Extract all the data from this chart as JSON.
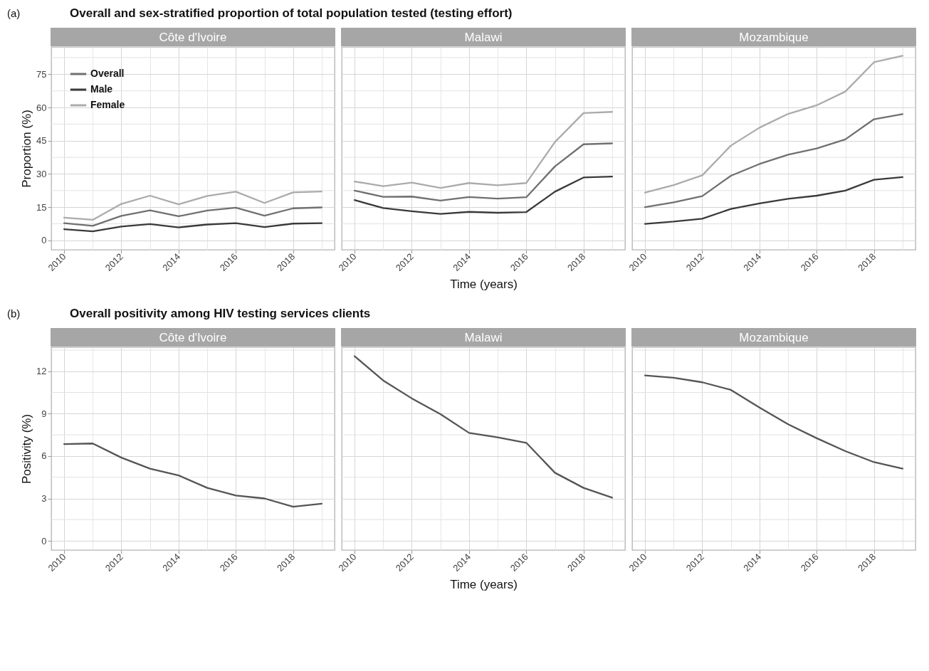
{
  "chart_data": [
    {
      "type": "line",
      "title": "Côte d'Ivoire",
      "annotations": [
        "(a)",
        "Overall and sex-stratified proportion of total population tested (testing effort)"
      ],
      "ylabel": "Proportion (%)",
      "x": [
        2010,
        2011,
        2012,
        2013,
        2014,
        2015,
        2016,
        2017,
        2018,
        2019
      ],
      "xlim": [
        2009.55,
        2019.45
      ],
      "xticks": [
        2010,
        {
          "value": 2011,
          "label": null
        },
        2012,
        {
          "value": 2013,
          "label": null
        },
        2014,
        {
          "value": 2015,
          "label": null
        },
        2016,
        {
          "value": 2017,
          "label": null
        },
        2018,
        {
          "value": 2019,
          "label": null
        }
      ],
      "ylim": [
        -4.2,
        87.3
      ],
      "yticks": [
        0,
        {
          "value": 7.5,
          "label": null
        },
        15,
        {
          "value": 22.5,
          "label": null
        },
        30,
        {
          "value": 37.5,
          "label": null
        },
        45,
        {
          "value": 52.5,
          "label": null
        },
        60,
        {
          "value": 67.5,
          "label": null
        },
        75,
        {
          "value": 82.5,
          "label": null
        }
      ],
      "grid": true,
      "legend": "top left",
      "series": [
        {
          "name": "Overall",
          "color": "#707070",
          "values": [
            7.8,
            6.6,
            11.1,
            13.6,
            10.9,
            13.5,
            14.8,
            11.2,
            14.5,
            14.9
          ]
        },
        {
          "name": "Male",
          "color": "#3a3a3a",
          "values": [
            5.1,
            4.1,
            6.3,
            7.4,
            5.9,
            7.2,
            7.8,
            6.0,
            7.6,
            7.8
          ]
        },
        {
          "name": "Female",
          "color": "#ababab",
          "values": [
            10.3,
            9.3,
            16.5,
            20.2,
            16.3,
            20.1,
            22.0,
            16.9,
            21.7,
            22.1
          ]
        }
      ]
    },
    {
      "type": "line",
      "title": "Malawi",
      "xlabel": "Time (years)",
      "tick_labels": "x",
      "x": [
        2010,
        2011,
        2012,
        2013,
        2014,
        2015,
        2016,
        2017,
        2018,
        2019
      ],
      "xlim": [
        2009.55,
        2019.45
      ],
      "xticks": [
        2010,
        {
          "value": 2011,
          "label": null
        },
        2012,
        {
          "value": 2013,
          "label": null
        },
        2014,
        {
          "value": 2015,
          "label": null
        },
        2016,
        {
          "value": 2017,
          "label": null
        },
        2018,
        {
          "value": 2019,
          "label": null
        }
      ],
      "ylim": [
        -4.2,
        87.3
      ],
      "yticks": [
        0,
        {
          "value": 7.5,
          "label": null
        },
        15,
        {
          "value": 22.5,
          "label": null
        },
        30,
        {
          "value": 37.5,
          "label": null
        },
        45,
        {
          "value": 52.5,
          "label": null
        },
        60,
        {
          "value": 67.5,
          "label": null
        },
        75,
        {
          "value": 82.5,
          "label": null
        }
      ],
      "grid": true,
      "series": [
        {
          "color": "#707070",
          "values": [
            22.5,
            19.7,
            19.8,
            18.0,
            19.6,
            18.9,
            19.5,
            33.4,
            43.4,
            43.8
          ]
        },
        {
          "color": "#3a3a3a",
          "values": [
            18.2,
            14.6,
            13.2,
            12.0,
            12.9,
            12.5,
            12.8,
            22.0,
            28.4,
            28.8
          ]
        },
        {
          "color": "#ababab",
          "values": [
            26.6,
            24.5,
            26.1,
            23.7,
            25.9,
            24.9,
            25.9,
            44.4,
            57.5,
            58.0
          ]
        }
      ]
    },
    {
      "type": "line",
      "title": "Mozambique",
      "tick_labels": "x",
      "x": [
        2010,
        2011,
        2012,
        2013,
        2014,
        2015,
        2016,
        2017,
        2018,
        2019
      ],
      "xlim": [
        2009.55,
        2019.45
      ],
      "xticks": [
        2010,
        {
          "value": 2011,
          "label": null
        },
        2012,
        {
          "value": 2013,
          "label": null
        },
        2014,
        {
          "value": 2015,
          "label": null
        },
        2016,
        {
          "value": 2017,
          "label": null
        },
        2018,
        {
          "value": 2019,
          "label": null
        }
      ],
      "ylim": [
        -4.2,
        87.3
      ],
      "yticks": [
        0,
        {
          "value": 7.5,
          "label": null
        },
        15,
        {
          "value": 22.5,
          "label": null
        },
        30,
        {
          "value": 37.5,
          "label": null
        },
        45,
        {
          "value": 52.5,
          "label": null
        },
        60,
        {
          "value": 67.5,
          "label": null
        },
        75,
        {
          "value": 82.5,
          "label": null
        }
      ],
      "grid": true,
      "series": [
        {
          "color": "#707070",
          "values": [
            15.0,
            17.2,
            20.0,
            29.2,
            34.5,
            38.7,
            41.5,
            45.6,
            54.7,
            57.0
          ]
        },
        {
          "color": "#3a3a3a",
          "values": [
            7.5,
            8.5,
            9.8,
            14.2,
            16.7,
            18.8,
            20.2,
            22.5,
            27.4,
            28.6
          ]
        },
        {
          "color": "#ababab",
          "values": [
            21.6,
            25.0,
            29.4,
            42.8,
            50.9,
            57.1,
            61.0,
            67.2,
            80.4,
            83.3
          ]
        }
      ]
    },
    {
      "type": "line",
      "title": "Côte d'Ivoire",
      "annotations": [
        "(b)",
        "Overall positivity among HIV testing services clients"
      ],
      "ylabel": "Positivity (%)",
      "x": [
        2010,
        2011,
        2012,
        2013,
        2014,
        2015,
        2016,
        2017,
        2018,
        2019
      ],
      "xlim": [
        2009.55,
        2019.45
      ],
      "xticks": [
        2010,
        {
          "value": 2011,
          "label": null
        },
        2012,
        {
          "value": 2013,
          "label": null
        },
        2014,
        {
          "value": 2015,
          "label": null
        },
        2016,
        {
          "value": 2017,
          "label": null
        },
        2018,
        {
          "value": 2019,
          "label": null
        }
      ],
      "ylim": [
        -0.65,
        13.7
      ],
      "yticks": [
        0,
        {
          "value": 1.5,
          "label": null
        },
        3,
        {
          "value": 4.5,
          "label": null
        },
        6,
        {
          "value": 7.5,
          "label": null
        },
        9,
        {
          "value": 10.5,
          "label": null
        },
        12,
        {
          "value": 13.5,
          "label": null
        }
      ],
      "grid": true,
      "series": [
        {
          "color": "#555555",
          "values": [
            6.85,
            6.89,
            5.89,
            5.11,
            4.63,
            3.75,
            3.21,
            3.0,
            2.41,
            2.63
          ]
        }
      ]
    },
    {
      "type": "line",
      "title": "Malawi",
      "xlabel": "Time (years)",
      "tick_labels": "x",
      "x": [
        2010,
        2011,
        2012,
        2013,
        2014,
        2015,
        2016,
        2017,
        2018,
        2019
      ],
      "xlim": [
        2009.55,
        2019.45
      ],
      "xticks": [
        2010,
        {
          "value": 2011,
          "label": null
        },
        2012,
        {
          "value": 2013,
          "label": null
        },
        2014,
        {
          "value": 2015,
          "label": null
        },
        2016,
        {
          "value": 2017,
          "label": null
        },
        2018,
        {
          "value": 2019,
          "label": null
        }
      ],
      "ylim": [
        -0.65,
        13.7
      ],
      "yticks": [
        0,
        {
          "value": 1.5,
          "label": null
        },
        3,
        {
          "value": 4.5,
          "label": null
        },
        6,
        {
          "value": 7.5,
          "label": null
        },
        9,
        {
          "value": 10.5,
          "label": null
        },
        12,
        {
          "value": 13.5,
          "label": null
        }
      ],
      "grid": true,
      "series": [
        {
          "color": "#555555",
          "values": [
            13.07,
            11.35,
            10.08,
            8.97,
            7.64,
            7.32,
            6.94,
            4.82,
            3.75,
            3.06
          ]
        }
      ]
    },
    {
      "type": "line",
      "title": "Mozambique",
      "tick_labels": "x",
      "x": [
        2010,
        2011,
        2012,
        2013,
        2014,
        2015,
        2016,
        2017,
        2018,
        2019
      ],
      "xlim": [
        2009.55,
        2019.45
      ],
      "xticks": [
        2010,
        {
          "value": 2011,
          "label": null
        },
        2012,
        {
          "value": 2013,
          "label": null
        },
        2014,
        {
          "value": 2015,
          "label": null
        },
        2016,
        {
          "value": 2017,
          "label": null
        },
        2018,
        {
          "value": 2019,
          "label": null
        }
      ],
      "ylim": [
        -0.65,
        13.7
      ],
      "yticks": [
        0,
        {
          "value": 1.5,
          "label": null
        },
        3,
        {
          "value": 4.5,
          "label": null
        },
        6,
        {
          "value": 7.5,
          "label": null
        },
        9,
        {
          "value": 10.5,
          "label": null
        },
        12,
        {
          "value": 13.5,
          "label": null
        }
      ],
      "grid": true,
      "series": [
        {
          "color": "#555555",
          "values": [
            11.7,
            11.54,
            11.22,
            10.68,
            9.43,
            8.25,
            7.26,
            6.35,
            5.57,
            5.11
          ]
        }
      ]
    }
  ]
}
